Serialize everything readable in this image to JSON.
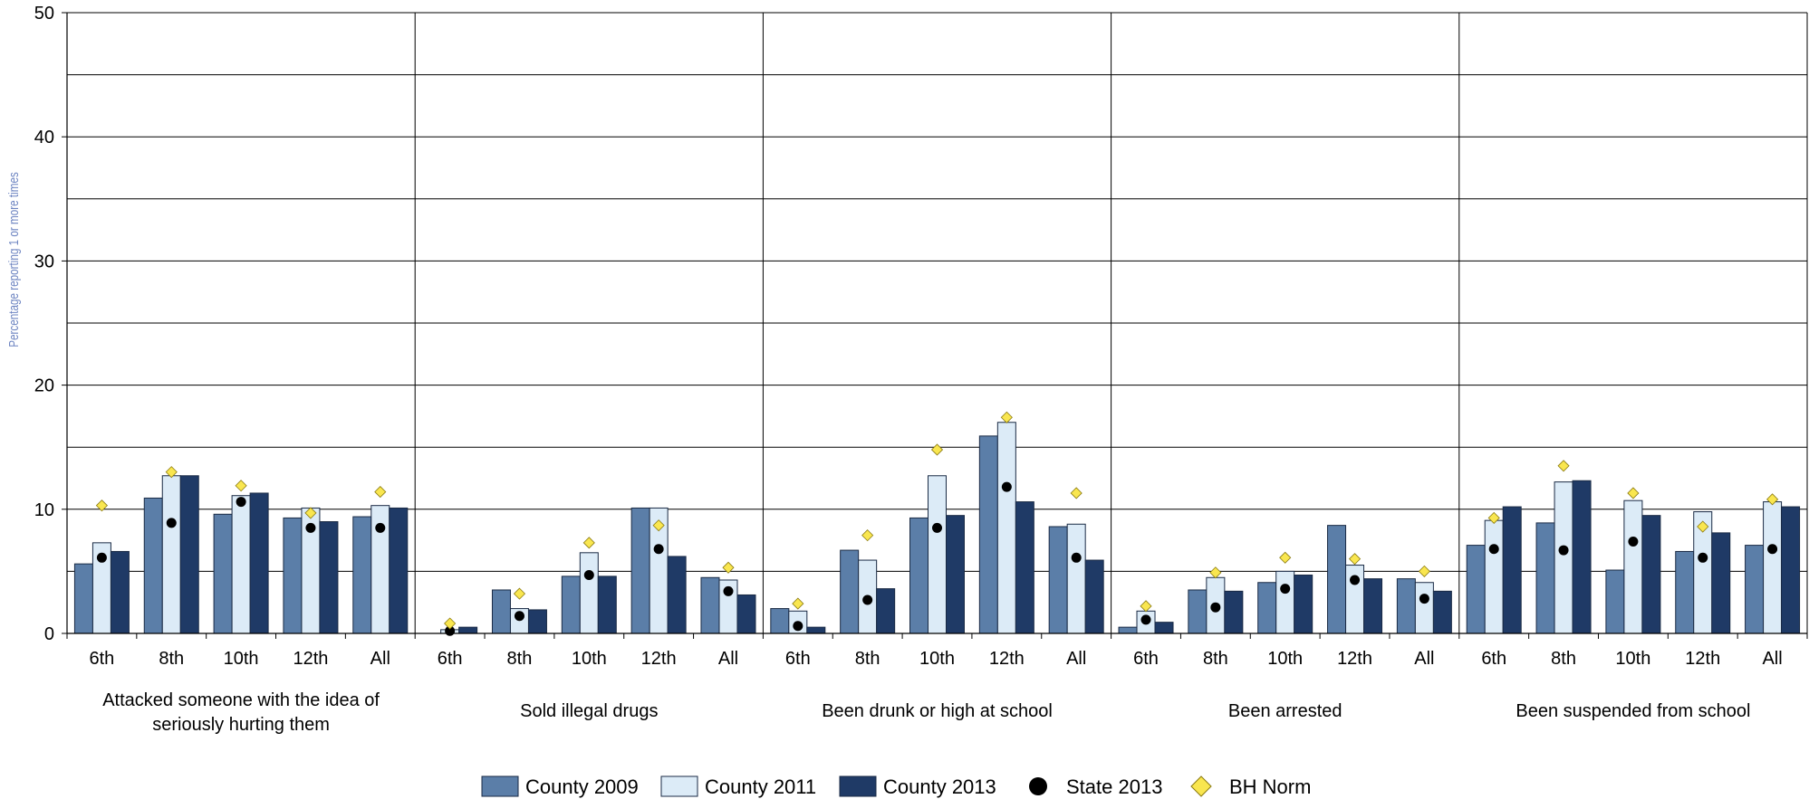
{
  "chart_data": {
    "type": "bar",
    "ylabel": "Percentage reporting 1 or more times",
    "ylim": [
      0,
      50
    ],
    "yticks": [
      0,
      10,
      20,
      30,
      40,
      50
    ],
    "grades": [
      "6th",
      "8th",
      "10th",
      "12th",
      "All"
    ],
    "groups": [
      {
        "label_lines": [
          "Attacked someone with the idea of",
          "seriously hurting them"
        ]
      },
      {
        "label_lines": [
          "Sold illegal drugs"
        ]
      },
      {
        "label_lines": [
          "Been drunk or high at school"
        ]
      },
      {
        "label_lines": [
          "Been arrested"
        ]
      },
      {
        "label_lines": [
          "Been suspended from school"
        ]
      }
    ],
    "series": [
      {
        "name": "County 2009",
        "color": "#5b7ea8",
        "values": [
          [
            5.6,
            10.9,
            9.6,
            9.3,
            9.4
          ],
          [
            0,
            3.5,
            4.6,
            10.1,
            4.5
          ],
          [
            2.0,
            6.7,
            9.3,
            15.9,
            8.6
          ],
          [
            0.5,
            3.5,
            4.1,
            8.7,
            4.4
          ],
          [
            7.1,
            8.9,
            5.1,
            6.6,
            7.1
          ]
        ]
      },
      {
        "name": "County 2011",
        "color": "#dcebf7",
        "values": [
          [
            7.3,
            12.7,
            11.1,
            10.1,
            10.3
          ],
          [
            0.3,
            2.0,
            6.5,
            10.1,
            4.3
          ],
          [
            1.8,
            5.9,
            12.7,
            17.0,
            8.8
          ],
          [
            1.8,
            4.5,
            5.0,
            5.5,
            4.1
          ],
          [
            9.1,
            12.2,
            10.7,
            9.8,
            10.6
          ]
        ]
      },
      {
        "name": "County 2013",
        "color": "#1f3a66",
        "values": [
          [
            6.6,
            12.7,
            11.3,
            9.0,
            10.1
          ],
          [
            0.5,
            1.9,
            4.6,
            6.2,
            3.1
          ],
          [
            0.5,
            3.6,
            9.5,
            10.6,
            5.9
          ],
          [
            0.9,
            3.4,
            4.7,
            4.4,
            3.4
          ],
          [
            10.2,
            12.3,
            9.5,
            8.1,
            10.2
          ]
        ]
      }
    ],
    "markers": [
      {
        "name": "State 2013",
        "shape": "circle",
        "color": "#000000",
        "values": [
          [
            6.1,
            8.9,
            10.6,
            8.5,
            8.5
          ],
          [
            0.2,
            1.4,
            4.7,
            6.8,
            3.4
          ],
          [
            0.6,
            2.7,
            8.5,
            11.8,
            6.1
          ],
          [
            1.1,
            2.1,
            3.6,
            4.3,
            2.8
          ],
          [
            6.8,
            6.7,
            7.4,
            6.1,
            6.8
          ]
        ]
      },
      {
        "name": "BH Norm",
        "shape": "diamond",
        "color": "#f9e64f",
        "values": [
          [
            10.3,
            13.0,
            11.9,
            9.7,
            11.4
          ],
          [
            0.8,
            3.2,
            7.3,
            8.7,
            5.3
          ],
          [
            2.4,
            7.9,
            14.8,
            17.4,
            11.3
          ],
          [
            2.2,
            4.9,
            6.1,
            6.0,
            5.0
          ],
          [
            9.3,
            13.5,
            11.3,
            8.6,
            10.8
          ]
        ]
      }
    ]
  }
}
